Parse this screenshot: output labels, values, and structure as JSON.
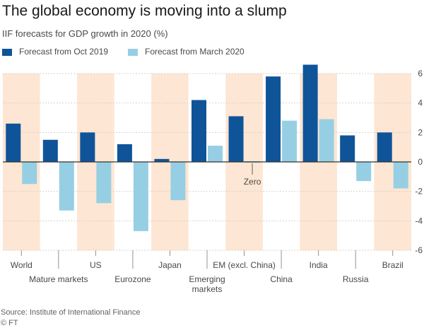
{
  "colors": {
    "series_1": "#0f5499",
    "series_2": "#96cfe3",
    "band": "#fde6d3",
    "background": "#ffffff",
    "zero_line": "#33302e",
    "gridline": "#d8d2cd"
  },
  "footer": {
    "source": "Source: Institute of International Finance",
    "credit": "© FT"
  },
  "chart_data": {
    "type": "bar",
    "title": "The global economy is moving into a slump",
    "subtitle": "IIF forecasts for GDP growth in 2020 (%)",
    "xlabel": "",
    "ylabel": "",
    "categories": [
      "World",
      "Mature markets",
      "US",
      "Eurozone",
      "Japan",
      "Emerging markets",
      "EM (excl. China)",
      "China",
      "India",
      "Russia",
      "Brazil"
    ],
    "category_label_lines": [
      [
        "World"
      ],
      [
        "Mature markets"
      ],
      [
        "US"
      ],
      [
        "Eurozone"
      ],
      [
        "Japan"
      ],
      [
        "Emerging",
        "markets"
      ],
      [
        "EM (excl. China)"
      ],
      [
        "China"
      ],
      [
        "India"
      ],
      [
        "Russia"
      ],
      [
        "Brazil"
      ]
    ],
    "series": [
      {
        "name": "Forecast from Oct 2019",
        "values": [
          2.6,
          1.5,
          2.0,
          1.2,
          0.2,
          4.2,
          3.1,
          5.8,
          6.6,
          1.8,
          2.0
        ]
      },
      {
        "name": "Forecast from March 2020",
        "values": [
          -1.5,
          -3.3,
          -2.8,
          -4.7,
          -2.6,
          1.1,
          0.0,
          2.8,
          2.9,
          -1.3,
          -1.8
        ]
      }
    ],
    "ylim": [
      -6,
      6
    ],
    "yticks": [
      -6,
      -4,
      -2,
      0,
      2,
      4,
      6
    ],
    "y_axis_side": "right",
    "gridlines": true,
    "alternating_bands": true,
    "legend_position": "top-left",
    "annotations": [
      {
        "text": "Zero",
        "category": "EM (excl. China)",
        "series": 1
      }
    ]
  }
}
